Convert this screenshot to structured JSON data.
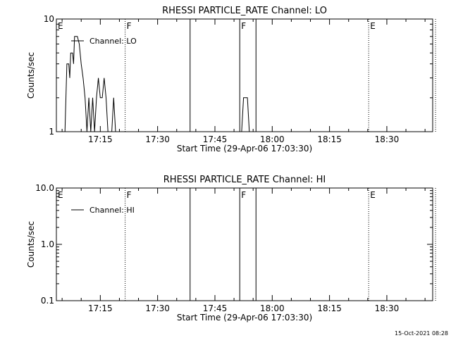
{
  "footer": {
    "timestamp": "15-Oct-2021 08:28"
  },
  "chart_data": [
    {
      "type": "line",
      "title": "RHESSI PARTICLE_RATE Channel: LO",
      "xlabel": "Start Time (29-Apr-06 17:03:30)",
      "ylabel": "Counts/sec",
      "y_scale": "log",
      "ylim": [
        1,
        10
      ],
      "y_ticks": [
        1,
        10
      ],
      "y_tick_labels": [
        "1",
        "10"
      ],
      "xlim": [
        "17:03:30",
        "18:42:00"
      ],
      "x_ticks": [
        "17:15",
        "17:30",
        "17:45",
        "18:00",
        "18:15",
        "18:30"
      ],
      "legend": {
        "label": "Channel: LO",
        "placement": "top-left"
      },
      "series": [
        {
          "name": "Channel: LO",
          "points": [
            [
              "17:05:45",
              1
            ],
            [
              "17:06:15",
              4
            ],
            [
              "17:06:45",
              4
            ],
            [
              "17:07:00",
              3
            ],
            [
              "17:07:15",
              5
            ],
            [
              "17:07:45",
              5
            ],
            [
              "17:08:00",
              4
            ],
            [
              "17:08:15",
              7
            ],
            [
              "17:09:00",
              7
            ],
            [
              "17:09:30",
              6
            ],
            [
              "17:10:00",
              4
            ],
            [
              "17:10:30",
              3
            ],
            [
              "17:11:00",
              2
            ],
            [
              "17:11:30",
              1
            ],
            [
              "17:12:00",
              2
            ],
            [
              "17:12:30",
              1
            ],
            [
              "17:13:00",
              2
            ],
            [
              "17:13:30",
              1
            ],
            [
              "17:14:00",
              2
            ],
            [
              "17:14:30",
              3
            ],
            [
              "17:15:00",
              2
            ],
            [
              "17:15:30",
              2
            ],
            [
              "17:16:00",
              3
            ],
            [
              "17:16:30",
              2
            ],
            [
              "17:17:00",
              1
            ],
            [
              "17:18:00",
              1
            ],
            [
              "17:18:30",
              2
            ],
            [
              "17:19:00",
              1
            ],
            [
              "17:20:00",
              1
            ],
            [
              "17:21:00",
              1
            ],
            [
              "17:22:00",
              1
            ],
            [
              "17:52:00",
              1
            ],
            [
              "17:52:30",
              2
            ],
            [
              "17:53:30",
              2
            ],
            [
              "17:54:00",
              1
            ]
          ]
        }
      ],
      "markers": [
        {
          "time": "17:03:30",
          "label": "E",
          "style": "solid"
        },
        {
          "time": "17:21:30",
          "label": "F",
          "style": "dotted"
        },
        {
          "time": "17:38:30",
          "label": "",
          "style": "solid"
        },
        {
          "time": "17:51:30",
          "label": "F",
          "style": "solid"
        },
        {
          "time": "17:55:45",
          "label": "",
          "style": "solid"
        },
        {
          "time": "18:25:15",
          "label": "E",
          "style": "dotted"
        },
        {
          "time": "18:42:45",
          "label": "",
          "style": "dotted"
        }
      ]
    },
    {
      "type": "line",
      "title": "RHESSI PARTICLE_RATE Channel: HI",
      "xlabel": "Start Time (29-Apr-06 17:03:30)",
      "ylabel": "Counts/sec",
      "y_scale": "log",
      "ylim": [
        0.1,
        10
      ],
      "y_ticks": [
        0.1,
        1,
        10
      ],
      "y_tick_labels": [
        "0.1",
        "1.0",
        "10.0"
      ],
      "xlim": [
        "17:03:30",
        "18:42:00"
      ],
      "x_ticks": [
        "17:15",
        "17:30",
        "17:45",
        "18:00",
        "18:15",
        "18:30"
      ],
      "legend": {
        "label": "Channel: HI",
        "placement": "top-left"
      },
      "series": [
        {
          "name": "Channel: HI",
          "points": []
        }
      ],
      "markers": [
        {
          "time": "17:03:30",
          "label": "E",
          "style": "solid"
        },
        {
          "time": "17:21:30",
          "label": "F",
          "style": "dotted"
        },
        {
          "time": "17:38:30",
          "label": "",
          "style": "solid"
        },
        {
          "time": "17:51:30",
          "label": "F",
          "style": "solid"
        },
        {
          "time": "17:55:45",
          "label": "",
          "style": "solid"
        },
        {
          "time": "18:25:15",
          "label": "E",
          "style": "dotted"
        },
        {
          "time": "18:42:45",
          "label": "",
          "style": "dotted"
        }
      ]
    }
  ]
}
